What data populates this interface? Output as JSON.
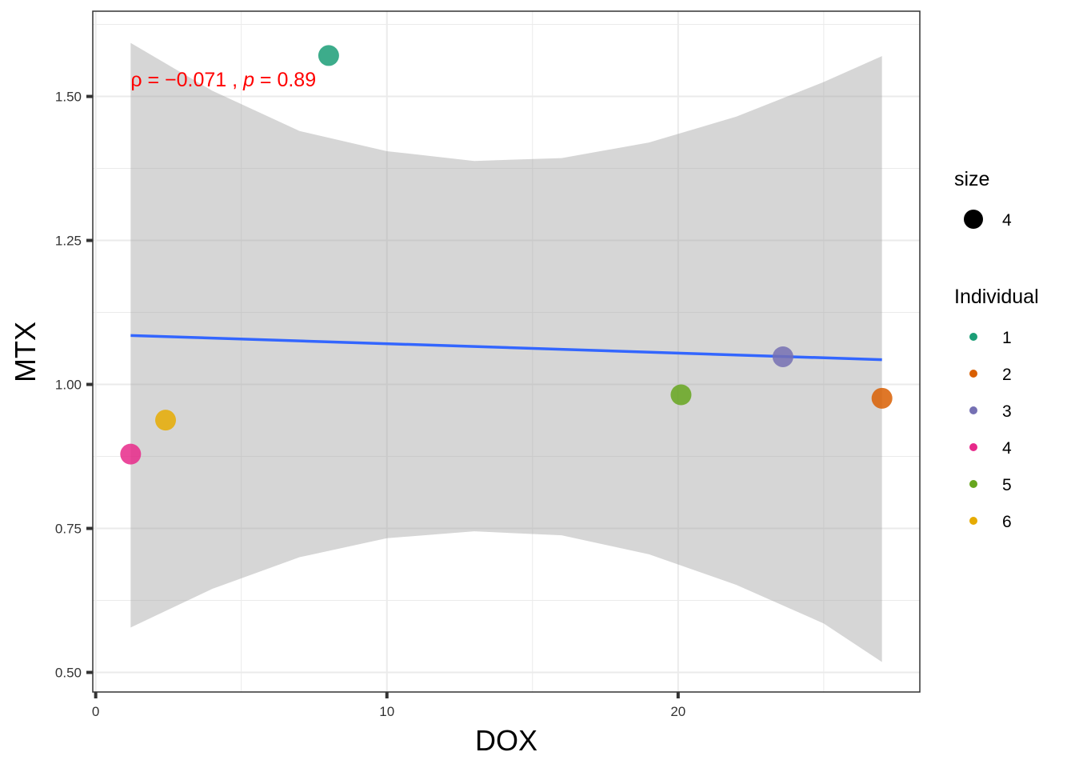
{
  "chart_data": {
    "type": "scatter",
    "title": "",
    "xlabel": "DOX",
    "ylabel": "MTX",
    "xlim": [
      -0.1,
      28.3
    ],
    "ylim": [
      0.466,
      1.648
    ],
    "x_ticks": [
      0,
      10,
      20
    ],
    "x_minor_ticks": [
      5,
      15,
      25
    ],
    "y_ticks": [
      0.5,
      0.75,
      1.0,
      1.25,
      1.5
    ],
    "y_minor_ticks": [
      0.625,
      0.875,
      1.125,
      1.375,
      1.625
    ],
    "x_tick_labels": [
      "0",
      "10",
      "20"
    ],
    "y_tick_labels": [
      "0.50",
      "0.75",
      "1.00",
      "1.25",
      "1.50"
    ],
    "grid": true,
    "legend_position": "right",
    "series": [
      {
        "name": "1",
        "color": "#1B9E77",
        "points": [
          {
            "x": 8.0,
            "y": 1.571
          }
        ]
      },
      {
        "name": "2",
        "color": "#D95F02",
        "points": [
          {
            "x": 27.0,
            "y": 0.976
          }
        ]
      },
      {
        "name": "3",
        "color": "#7570B3",
        "points": [
          {
            "x": 23.6,
            "y": 1.048
          }
        ]
      },
      {
        "name": "4",
        "color": "#E7298A",
        "points": [
          {
            "x": 1.2,
            "y": 0.879
          }
        ]
      },
      {
        "name": "5",
        "color": "#66A61E",
        "points": [
          {
            "x": 20.1,
            "y": 0.982
          }
        ]
      },
      {
        "name": "6",
        "color": "#E6AB02",
        "points": [
          {
            "x": 2.4,
            "y": 0.938
          }
        ]
      }
    ],
    "regression": {
      "color": "#3366FF",
      "x_start": 1.2,
      "x_end": 27.0,
      "y_start": 1.085,
      "y_end": 1.043,
      "band_color": "#999999",
      "band_upper": [
        {
          "x": 1.2,
          "y": 1.593
        },
        {
          "x": 4,
          "y": 1.51
        },
        {
          "x": 7,
          "y": 1.44
        },
        {
          "x": 10,
          "y": 1.405
        },
        {
          "x": 13,
          "y": 1.388
        },
        {
          "x": 16,
          "y": 1.393
        },
        {
          "x": 19,
          "y": 1.42
        },
        {
          "x": 22,
          "y": 1.465
        },
        {
          "x": 25,
          "y": 1.525
        },
        {
          "x": 27.0,
          "y": 1.57
        }
      ],
      "band_lower": [
        {
          "x": 1.2,
          "y": 0.578
        },
        {
          "x": 4,
          "y": 0.645
        },
        {
          "x": 7,
          "y": 0.7
        },
        {
          "x": 10,
          "y": 0.733
        },
        {
          "x": 13,
          "y": 0.745
        },
        {
          "x": 16,
          "y": 0.738
        },
        {
          "x": 19,
          "y": 0.705
        },
        {
          "x": 22,
          "y": 0.652
        },
        {
          "x": 25,
          "y": 0.585
        },
        {
          "x": 27.0,
          "y": 0.518
        }
      ]
    },
    "annotation": {
      "rho_symbol": "ρ",
      "rest1": " = −0.071 , ",
      "p_symbol": "p",
      "rest2": " = 0.89",
      "x": 1.2,
      "y": 1.53
    },
    "legend": {
      "size": {
        "title": "size",
        "label": "4",
        "color": "#000000"
      },
      "individual": {
        "title": "Individual",
        "items": [
          "1",
          "2",
          "3",
          "4",
          "5",
          "6"
        ]
      }
    }
  }
}
